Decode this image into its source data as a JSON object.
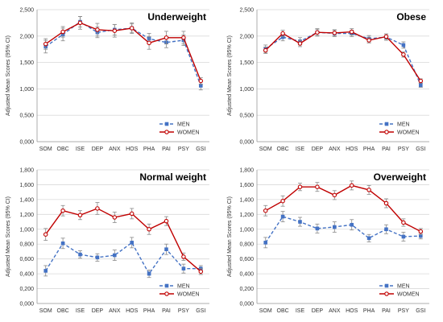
{
  "figure": {
    "colors": {
      "men": "#4472C4",
      "women": "#C00000",
      "error": "#888888",
      "axis": "#9a9a9a",
      "grid": "#d9d9d9",
      "text": "#333333"
    }
  },
  "chart_data": [
    {
      "type": "line",
      "title": "Underweight",
      "ylabel": "Adjusted Mean Scores (95% CI)",
      "categories": [
        "SOM",
        "OBC",
        "ISE",
        "DEP",
        "ANX",
        "HOS",
        "PHA",
        "PAI",
        "PSY",
        "GSI"
      ],
      "yticks": [
        "0,000",
        "0,500",
        "1,000",
        "1,500",
        "2,000",
        "2,500"
      ],
      "ylim": [
        0,
        2.5
      ],
      "legend_position": "bottom-right",
      "series": [
        {
          "name": "MEN",
          "values": [
            1.8,
            2.03,
            2.27,
            2.07,
            2.12,
            2.15,
            1.95,
            1.88,
            1.92,
            1.06
          ],
          "errors": [
            0.12,
            0.12,
            0.1,
            0.1,
            0.1,
            0.08,
            0.1,
            0.1,
            0.1,
            0.08
          ],
          "style": "dashed",
          "marker": "square"
        },
        {
          "name": "WOMEN",
          "values": [
            1.85,
            2.08,
            2.25,
            2.12,
            2.1,
            2.15,
            1.87,
            1.97,
            1.97,
            1.15
          ],
          "errors": [
            0.1,
            0.1,
            0.12,
            0.12,
            0.12,
            0.1,
            0.12,
            0.12,
            0.12,
            0.06
          ],
          "style": "solid",
          "marker": "circle"
        }
      ]
    },
    {
      "type": "line",
      "title": "Obese",
      "ylabel": "Adjusted Mean Scores (95% CI)",
      "categories": [
        "SOM",
        "OBC",
        "ISE",
        "DEP",
        "ANX",
        "HOS",
        "PHA",
        "PAI",
        "PSY",
        "GSI"
      ],
      "yticks": [
        "0,000",
        "0,500",
        "1,000",
        "1,500",
        "2,000",
        "2,500"
      ],
      "ylim": [
        0,
        2.5
      ],
      "legend_position": "bottom-right",
      "series": [
        {
          "name": "MEN",
          "values": [
            1.76,
            1.98,
            1.9,
            2.07,
            2.05,
            2.05,
            1.95,
            1.98,
            1.83,
            1.07
          ],
          "errors": [
            0.07,
            0.07,
            0.07,
            0.07,
            0.06,
            0.06,
            0.06,
            0.06,
            0.06,
            0.04
          ],
          "style": "dashed",
          "marker": "square"
        },
        {
          "name": "WOMEN",
          "values": [
            1.73,
            2.05,
            1.86,
            2.07,
            2.06,
            2.08,
            1.92,
            1.99,
            1.65,
            1.15
          ],
          "errors": [
            0.06,
            0.06,
            0.06,
            0.06,
            0.06,
            0.06,
            0.05,
            0.05,
            0.05,
            0.04
          ],
          "style": "solid",
          "marker": "circle"
        }
      ]
    },
    {
      "type": "line",
      "title": "Normal weight",
      "ylabel": "Adjusted Mean Scores (95% CI)",
      "categories": [
        "SOM",
        "OBC",
        "ISE",
        "DEP",
        "ANX",
        "HOS",
        "PHA",
        "PAI",
        "PSY",
        "GSI"
      ],
      "yticks": [
        "0,000",
        "0,200",
        "0,400",
        "0,600",
        "0,800",
        "1,000",
        "1,200",
        "1,400",
        "1,600",
        "1,800"
      ],
      "ylim": [
        0,
        1.8
      ],
      "legend_position": "bottom-right",
      "series": [
        {
          "name": "MEN",
          "values": [
            0.44,
            0.81,
            0.66,
            0.62,
            0.65,
            0.82,
            0.4,
            0.73,
            0.47,
            0.47
          ],
          "errors": [
            0.07,
            0.07,
            0.05,
            0.05,
            0.07,
            0.07,
            0.05,
            0.07,
            0.06,
            0.04
          ],
          "style": "dashed",
          "marker": "square"
        },
        {
          "name": "WOMEN",
          "values": [
            0.93,
            1.25,
            1.19,
            1.28,
            1.16,
            1.21,
            1.0,
            1.11,
            0.63,
            0.43
          ],
          "errors": [
            0.08,
            0.07,
            0.06,
            0.08,
            0.07,
            0.07,
            0.07,
            0.06,
            0.05,
            0.04
          ],
          "style": "solid",
          "marker": "circle"
        }
      ]
    },
    {
      "type": "line",
      "title": "Overweight",
      "ylabel": "Adjusted Mean Scores (95% CI)",
      "categories": [
        "SOM",
        "OBC",
        "ISE",
        "DEP",
        "ANX",
        "HOS",
        "PHA",
        "PAI",
        "PSY",
        "GSI"
      ],
      "yticks": [
        "0,000",
        "0,200",
        "0,400",
        "0,600",
        "0,800",
        "1,000",
        "1,200",
        "1,400",
        "1,600",
        "1,800"
      ],
      "ylim": [
        0,
        1.8
      ],
      "legend_position": "bottom-right",
      "series": [
        {
          "name": "MEN",
          "values": [
            0.82,
            1.17,
            1.1,
            1.01,
            1.03,
            1.06,
            0.88,
            1.0,
            0.9,
            0.91
          ],
          "errors": [
            0.07,
            0.07,
            0.06,
            0.06,
            0.07,
            0.07,
            0.05,
            0.06,
            0.06,
            0.04
          ],
          "style": "dashed",
          "marker": "square"
        },
        {
          "name": "WOMEN",
          "values": [
            1.25,
            1.38,
            1.57,
            1.57,
            1.46,
            1.59,
            1.53,
            1.35,
            1.09,
            0.97
          ],
          "errors": [
            0.07,
            0.07,
            0.05,
            0.06,
            0.06,
            0.06,
            0.06,
            0.06,
            0.05,
            0.04
          ],
          "style": "solid",
          "marker": "circle"
        }
      ]
    }
  ]
}
